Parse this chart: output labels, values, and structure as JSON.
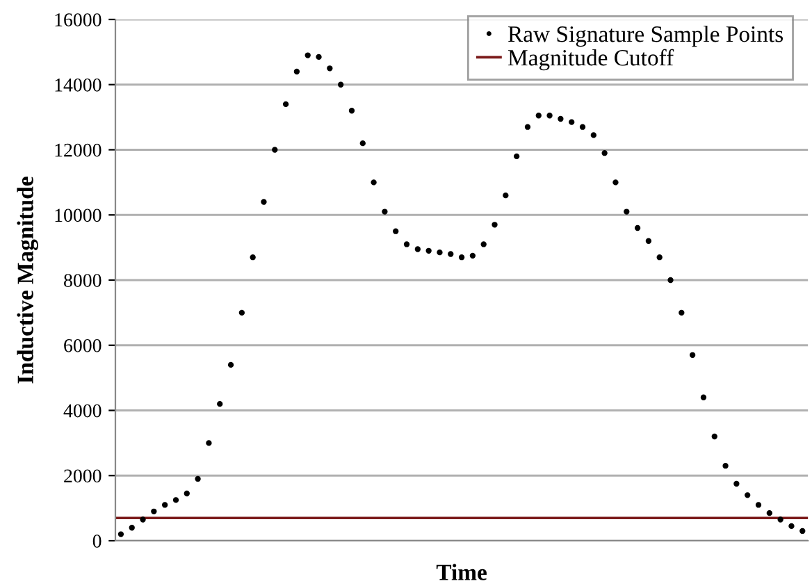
{
  "chart_data": {
    "type": "scatter",
    "xlabel": "Time",
    "ylabel": "Inductive Magnitude",
    "categories": [
      null,
      null,
      null,
      null,
      null,
      null,
      null,
      null,
      null,
      null,
      null,
      null,
      null,
      null,
      null,
      null,
      null,
      null,
      null,
      null,
      null,
      null,
      null,
      null,
      null,
      null,
      null,
      null,
      null,
      null,
      null,
      null,
      null,
      null,
      null,
      null,
      null,
      null,
      null,
      null,
      null,
      null,
      null,
      null,
      null,
      null,
      null,
      null,
      null,
      null,
      null,
      null,
      null,
      null,
      null,
      null,
      null,
      null,
      null,
      null,
      null,
      null,
      null
    ],
    "series": [
      {
        "name": "Raw Signature Sample Points",
        "color": "#000000",
        "values": [
          200,
          400,
          650,
          900,
          1100,
          1250,
          1450,
          1900,
          3000,
          4200,
          5400,
          7000,
          8700,
          10400,
          12000,
          13400,
          14400,
          14900,
          14850,
          14500,
          14000,
          13200,
          12200,
          11000,
          10100,
          9500,
          9100,
          8950,
          8900,
          8850,
          8800,
          8700,
          8750,
          9100,
          9700,
          10600,
          11800,
          12700,
          13050,
          13050,
          12950,
          12850,
          12700,
          12450,
          11900,
          11000,
          10100,
          9600,
          9200,
          8700,
          8000,
          7000,
          5700,
          4400,
          3200,
          2300,
          1750,
          1400,
          1100,
          850,
          650,
          450,
          300
        ]
      }
    ],
    "ref_lines": [
      {
        "axis": "y",
        "value": 700,
        "label": "Magnitude Cutoff",
        "color": "#7b1a1a",
        "line_style": "solid"
      }
    ],
    "ylim": [
      0,
      16000
    ],
    "yticks": [
      0,
      2000,
      4000,
      6000,
      8000,
      10000,
      12000,
      14000,
      16000
    ],
    "grid": "y",
    "legend": "top right",
    "marker": "circle",
    "tick_labels": "y"
  }
}
